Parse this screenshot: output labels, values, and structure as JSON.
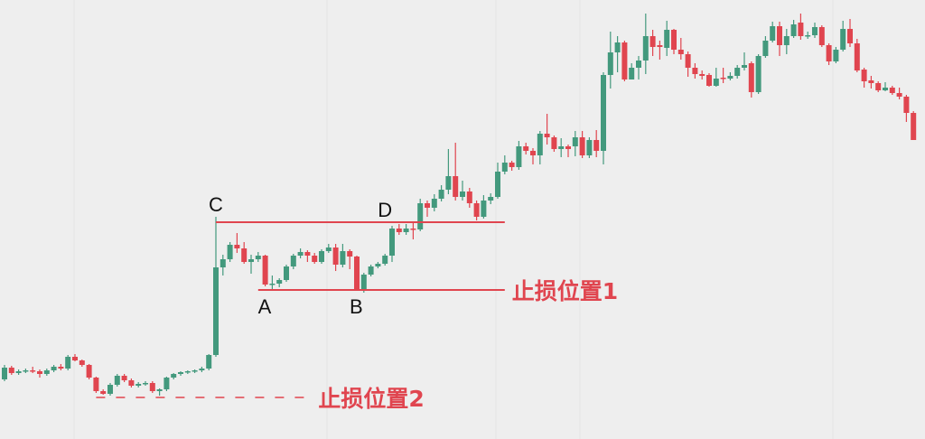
{
  "chart_data": {
    "type": "candlestick",
    "title": "",
    "xlabel": "",
    "ylabel": "",
    "grid": true,
    "ylim": [
      0,
      480
    ],
    "colors": {
      "up": "#43997d",
      "down": "#e0454f",
      "annotation": "#e0454f",
      "background": "#eeeeee"
    },
    "ohlc": [
      [
        60,
        76,
        58,
        73
      ],
      [
        73,
        75,
        65,
        67
      ],
      [
        67,
        71,
        65,
        69
      ],
      [
        69,
        72,
        67,
        70
      ],
      [
        70,
        74,
        67,
        69
      ],
      [
        69,
        71,
        62,
        66
      ],
      [
        66,
        72,
        64,
        70
      ],
      [
        70,
        76,
        68,
        74
      ],
      [
        74,
        77,
        70,
        72
      ],
      [
        72,
        87,
        70,
        85
      ],
      [
        85,
        88,
        80,
        81
      ],
      [
        81,
        82,
        74,
        76
      ],
      [
        76,
        77,
        60,
        62
      ],
      [
        62,
        63,
        45,
        47
      ],
      [
        47,
        49,
        43,
        44
      ],
      [
        44,
        56,
        42,
        54
      ],
      [
        54,
        66,
        52,
        64
      ],
      [
        64,
        66,
        57,
        59
      ],
      [
        59,
        61,
        51,
        53
      ],
      [
        53,
        57,
        51,
        55
      ],
      [
        55,
        58,
        53,
        56
      ],
      [
        56,
        58,
        45,
        47
      ],
      [
        47,
        50,
        42,
        49
      ],
      [
        49,
        63,
        47,
        62
      ],
      [
        62,
        67,
        60,
        66
      ],
      [
        66,
        69,
        64,
        68
      ],
      [
        68,
        70,
        66,
        69
      ],
      [
        69,
        71,
        67,
        70
      ],
      [
        70,
        74,
        68,
        72
      ],
      [
        72,
        88,
        70,
        87
      ],
      [
        87,
        240,
        85,
        184
      ],
      [
        184,
        198,
        175,
        193
      ],
      [
        193,
        212,
        190,
        209
      ],
      [
        209,
        222,
        200,
        205
      ],
      [
        205,
        212,
        188,
        190
      ],
      [
        190,
        198,
        177,
        193
      ],
      [
        193,
        201,
        190,
        197
      ],
      [
        197,
        198,
        163,
        165
      ],
      [
        165,
        175,
        160,
        166
      ],
      [
        166,
        172,
        162,
        170
      ],
      [
        170,
        187,
        168,
        185
      ],
      [
        185,
        199,
        182,
        197
      ],
      [
        197,
        205,
        194,
        201
      ],
      [
        201,
        203,
        190,
        197
      ],
      [
        197,
        200,
        188,
        190
      ],
      [
        190,
        204,
        188,
        202
      ],
      [
        202,
        210,
        200,
        206
      ],
      [
        206,
        210,
        180,
        187
      ],
      [
        187,
        210,
        184,
        202
      ],
      [
        202,
        204,
        182,
        196
      ],
      [
        196,
        197,
        158,
        160
      ],
      [
        160,
        178,
        156,
        176
      ],
      [
        176,
        187,
        174,
        185
      ],
      [
        185,
        190,
        183,
        188
      ],
      [
        188,
        199,
        186,
        197
      ],
      [
        197,
        230,
        190,
        227
      ],
      [
        227,
        232,
        220,
        223
      ],
      [
        223,
        232,
        220,
        227
      ],
      [
        227,
        234,
        215,
        226
      ],
      [
        226,
        260,
        224,
        255
      ],
      [
        255,
        258,
        240,
        250
      ],
      [
        250,
        265,
        246,
        260
      ],
      [
        260,
        275,
        257,
        270
      ],
      [
        270,
        315,
        265,
        285
      ],
      [
        285,
        322,
        258,
        262
      ],
      [
        262,
        280,
        258,
        268
      ],
      [
        268,
        272,
        250,
        255
      ],
      [
        255,
        258,
        236,
        240
      ],
      [
        240,
        264,
        238,
        258
      ],
      [
        258,
        266,
        254,
        262
      ],
      [
        262,
        300,
        260,
        290
      ],
      [
        290,
        308,
        287,
        300
      ],
      [
        300,
        302,
        291,
        295
      ],
      [
        295,
        324,
        292,
        318
      ],
      [
        318,
        322,
        309,
        313
      ],
      [
        313,
        316,
        298,
        308
      ],
      [
        308,
        335,
        298,
        332
      ],
      [
        332,
        354,
        320,
        328
      ],
      [
        328,
        330,
        312,
        315
      ],
      [
        315,
        327,
        306,
        318
      ],
      [
        318,
        320,
        306,
        315
      ],
      [
        318,
        335,
        307,
        328
      ],
      [
        328,
        335,
        305,
        308
      ],
      [
        308,
        328,
        305,
        325
      ],
      [
        325,
        336,
        306,
        313
      ],
      [
        313,
        400,
        298,
        397
      ],
      [
        397,
        445,
        382,
        422
      ],
      [
        422,
        440,
        400,
        433
      ],
      [
        433,
        435,
        390,
        392
      ],
      [
        392,
        410,
        392,
        405
      ],
      [
        405,
        418,
        392,
        413
      ],
      [
        413,
        465,
        398,
        440
      ],
      [
        440,
        447,
        418,
        428
      ],
      [
        430,
        435,
        414,
        428
      ],
      [
        427,
        457,
        418,
        447
      ],
      [
        447,
        448,
        420,
        425
      ],
      [
        425,
        438,
        414,
        420
      ],
      [
        420,
        423,
        395,
        405
      ],
      [
        405,
        410,
        393,
        398
      ],
      [
        398,
        402,
        392,
        396
      ],
      [
        397,
        399,
        384,
        385
      ],
      [
        385,
        405,
        384,
        393
      ],
      [
        394,
        405,
        388,
        393
      ],
      [
        393,
        400,
        391,
        396
      ],
      [
        396,
        408,
        393,
        405
      ],
      [
        405,
        422,
        402,
        408
      ],
      [
        410,
        412,
        372,
        378
      ],
      [
        378,
        420,
        376,
        418
      ],
      [
        418,
        440,
        416,
        435
      ],
      [
        435,
        456,
        433,
        451
      ],
      [
        451,
        456,
        418,
        430
      ],
      [
        430,
        448,
        420,
        440
      ],
      [
        440,
        458,
        438,
        453
      ],
      [
        455,
        465,
        436,
        440
      ],
      [
        440,
        445,
        437,
        441
      ],
      [
        441,
        455,
        438,
        450
      ],
      [
        450,
        452,
        428,
        430
      ],
      [
        430,
        432,
        408,
        412
      ],
      [
        412,
        428,
        410,
        425
      ],
      [
        425,
        457,
        423,
        448
      ],
      [
        448,
        459,
        428,
        432
      ],
      [
        432,
        437,
        400,
        402
      ],
      [
        403,
        405,
        383,
        390
      ],
      [
        391,
        396,
        382,
        388
      ],
      [
        388,
        390,
        378,
        380
      ],
      [
        380,
        389,
        379,
        383
      ],
      [
        383,
        385,
        375,
        377
      ],
      [
        377,
        383,
        370,
        373
      ],
      [
        373,
        375,
        345,
        355
      ],
      [
        355,
        357,
        325,
        325
      ]
    ],
    "annotations": {
      "points": [
        {
          "label": "C",
          "index": 30,
          "position": "above"
        },
        {
          "label": "D",
          "index": 54,
          "position": "above"
        },
        {
          "label": "A",
          "index": 37,
          "position": "below"
        },
        {
          "label": "B",
          "index": 50,
          "position": "below"
        }
      ],
      "lines": [
        {
          "name": "CD",
          "price": 234,
          "from_index": 30,
          "to_index": 71,
          "style": "solid",
          "label": ""
        },
        {
          "name": "AB",
          "price": 159,
          "from_index": 36,
          "to_index": 71,
          "style": "solid",
          "label": "止损位置1"
        },
        {
          "name": "stop2",
          "price": 40,
          "from_index": 13,
          "to_index": 43,
          "style": "dashed",
          "label": "止损位置2"
        }
      ]
    }
  }
}
